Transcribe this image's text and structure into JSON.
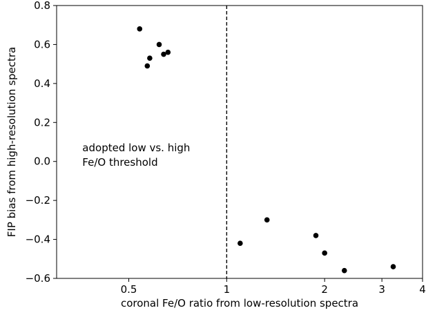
{
  "chart_data": {
    "type": "scatter",
    "title": "",
    "xlabel": "coronal Fe/O ratio from low-resolution spectra",
    "ylabel": "FIP bias from high-resolution spectra",
    "x_scale": "log",
    "xlim": [
      0.3,
      4.0
    ],
    "ylim": [
      -0.6,
      0.8
    ],
    "grid": false,
    "x_ticks": [
      0.5,
      1,
      2,
      3,
      4
    ],
    "x_tick_labels": [
      "0.5",
      "1",
      "2",
      "3",
      "4"
    ],
    "y_ticks": [
      -0.6,
      -0.4,
      -0.2,
      0.0,
      0.2,
      0.4,
      0.6,
      0.8
    ],
    "y_tick_labels": [
      "−0.6",
      "−0.4",
      "−0.2",
      "0.0",
      "0.2",
      "0.4",
      "0.6",
      "0.8"
    ],
    "marker_color": "#000000",
    "series": [
      {
        "points": [
          {
            "x": 0.54,
            "y": 0.68
          },
          {
            "x": 0.57,
            "y": 0.49
          },
          {
            "x": 0.58,
            "y": 0.53
          },
          {
            "x": 0.62,
            "y": 0.6
          },
          {
            "x": 0.64,
            "y": 0.55
          },
          {
            "x": 0.66,
            "y": 0.56
          },
          {
            "x": 1.1,
            "y": -0.42
          },
          {
            "x": 1.33,
            "y": -0.3
          },
          {
            "x": 1.88,
            "y": -0.38
          },
          {
            "x": 2.0,
            "y": -0.47
          },
          {
            "x": 2.3,
            "y": -0.56
          },
          {
            "x": 3.25,
            "y": -0.54
          }
        ]
      }
    ],
    "threshold": {
      "x": 1.0,
      "style": "dashed"
    },
    "annotation": {
      "lines": [
        "adopted low vs. high",
        "Fe/O threshold"
      ],
      "x": 0.36,
      "y": 0.07
    }
  }
}
